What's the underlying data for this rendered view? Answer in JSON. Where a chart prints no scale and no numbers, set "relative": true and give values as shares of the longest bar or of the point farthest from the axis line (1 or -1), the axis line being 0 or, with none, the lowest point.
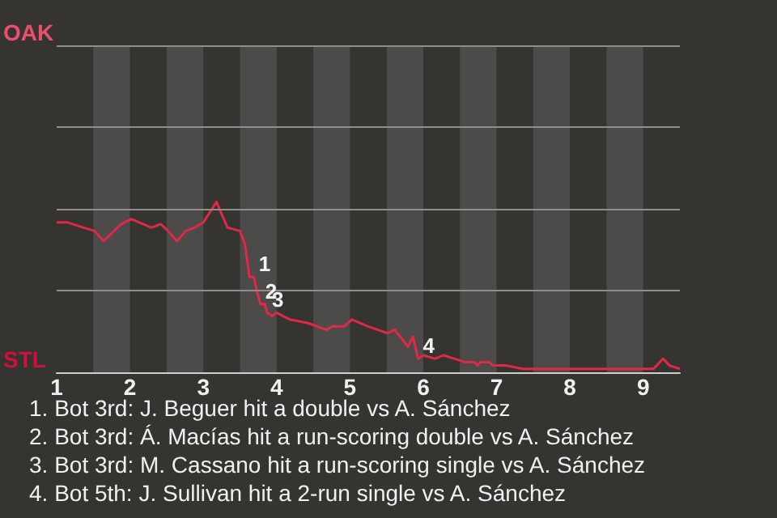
{
  "chart_data": {
    "type": "line",
    "relative": true,
    "x": [
      1,
      1.15,
      1.36,
      1.52,
      1.64,
      1.88,
      2.02,
      2.29,
      2.42,
      2.52,
      2.64,
      2.76,
      2.88,
      3,
      3.18,
      3.33,
      3.5,
      3.57,
      3.63,
      3.69,
      3.74,
      3.78,
      3.84,
      3.87,
      3.94,
      4,
      4.18,
      4.42,
      4.68,
      4.76,
      4.92,
      5.03,
      5.24,
      5.51,
      5.61,
      5.72,
      5.79,
      5.86,
      5.93,
      6,
      6.16,
      6.28,
      6.42,
      6.57,
      6.7,
      6.74,
      6.78,
      6.9,
      6.95,
      7.12,
      7.36,
      8,
      8.24,
      9,
      9.14,
      9.27,
      9.36,
      9.5
    ],
    "series": [
      {
        "color": "#e0284a",
        "values": [
          0.88,
          0.88,
          0.85,
          0.83,
          0.77,
          0.87,
          0.9,
          0.85,
          0.87,
          0.83,
          0.77,
          0.83,
          0.85,
          0.88,
          1,
          0.85,
          0.83,
          0.75,
          0.56,
          0.56,
          0.46,
          0.4,
          0.4,
          0.35,
          0.33,
          0.35,
          0.31,
          0.29,
          0.25,
          0.27,
          0.27,
          0.31,
          0.27,
          0.23,
          0.25,
          0.19,
          0.15,
          0.21,
          0.08,
          0.1,
          0.08,
          0.1,
          0.08,
          0.06,
          0.06,
          0.04,
          0.06,
          0.06,
          0.04,
          0.04,
          0.02,
          0.02,
          0.02,
          0.02,
          0.02,
          0.08,
          0.04,
          0.02
        ]
      }
    ],
    "xlim": [
      1,
      9.5
    ],
    "xticks": [
      1,
      2,
      3,
      4,
      5,
      6,
      7,
      8,
      9
    ],
    "marker": "none",
    "ref_lines": [
      {
        "axis": "y",
        "value": 0.48,
        "color": "#8f8e8c"
      },
      {
        "axis": "y",
        "value": 0.96,
        "color": "#8f8e8c"
      },
      {
        "axis": "y",
        "value": 1.44,
        "color": "#8f8e8c"
      },
      {
        "axis": "y",
        "value": 1.92,
        "color": "#8f8e8c"
      }
    ],
    "bands": [
      {
        "axis": "x",
        "from": 1.5,
        "to": 2,
        "color": "#4c4b49"
      },
      {
        "axis": "x",
        "from": 2.5,
        "to": 3,
        "color": "#4c4b49"
      },
      {
        "axis": "x",
        "from": 3.5,
        "to": 4,
        "color": "#4c4b49"
      },
      {
        "axis": "x",
        "from": 4.5,
        "to": 5,
        "color": "#4c4b49"
      },
      {
        "axis": "x",
        "from": 5.5,
        "to": 6,
        "color": "#4c4b49"
      },
      {
        "axis": "x",
        "from": 6.5,
        "to": 7,
        "color": "#4c4b49"
      },
      {
        "axis": "x",
        "from": 7.5,
        "to": 8,
        "color": "#4c4b49"
      },
      {
        "axis": "x",
        "from": 8.5,
        "to": 9,
        "color": "#4c4b49"
      }
    ],
    "annotations": [
      "OAK",
      "STL",
      {
        "text": "1",
        "x": 3.69,
        "y": 0.56
      },
      {
        "text": "2",
        "x": 3.78,
        "y": 0.4
      },
      {
        "text": "3",
        "x": 3.87,
        "y": 0.35
      },
      {
        "text": "4",
        "x": 5.93,
        "y": 0.08
      },
      "1. Bot 3rd: J. Beguer hit a double vs A. Sánchez",
      "2. Bot 3rd: Á. Macías hit a run-scoring double vs A. Sánchez",
      "3. Bot 3rd: M. Cassano hit a run-scoring single vs A. Sánchez",
      "4. Bot 5th: J. Sullivan hit a 2-run single vs A. Sánchez"
    ]
  }
}
